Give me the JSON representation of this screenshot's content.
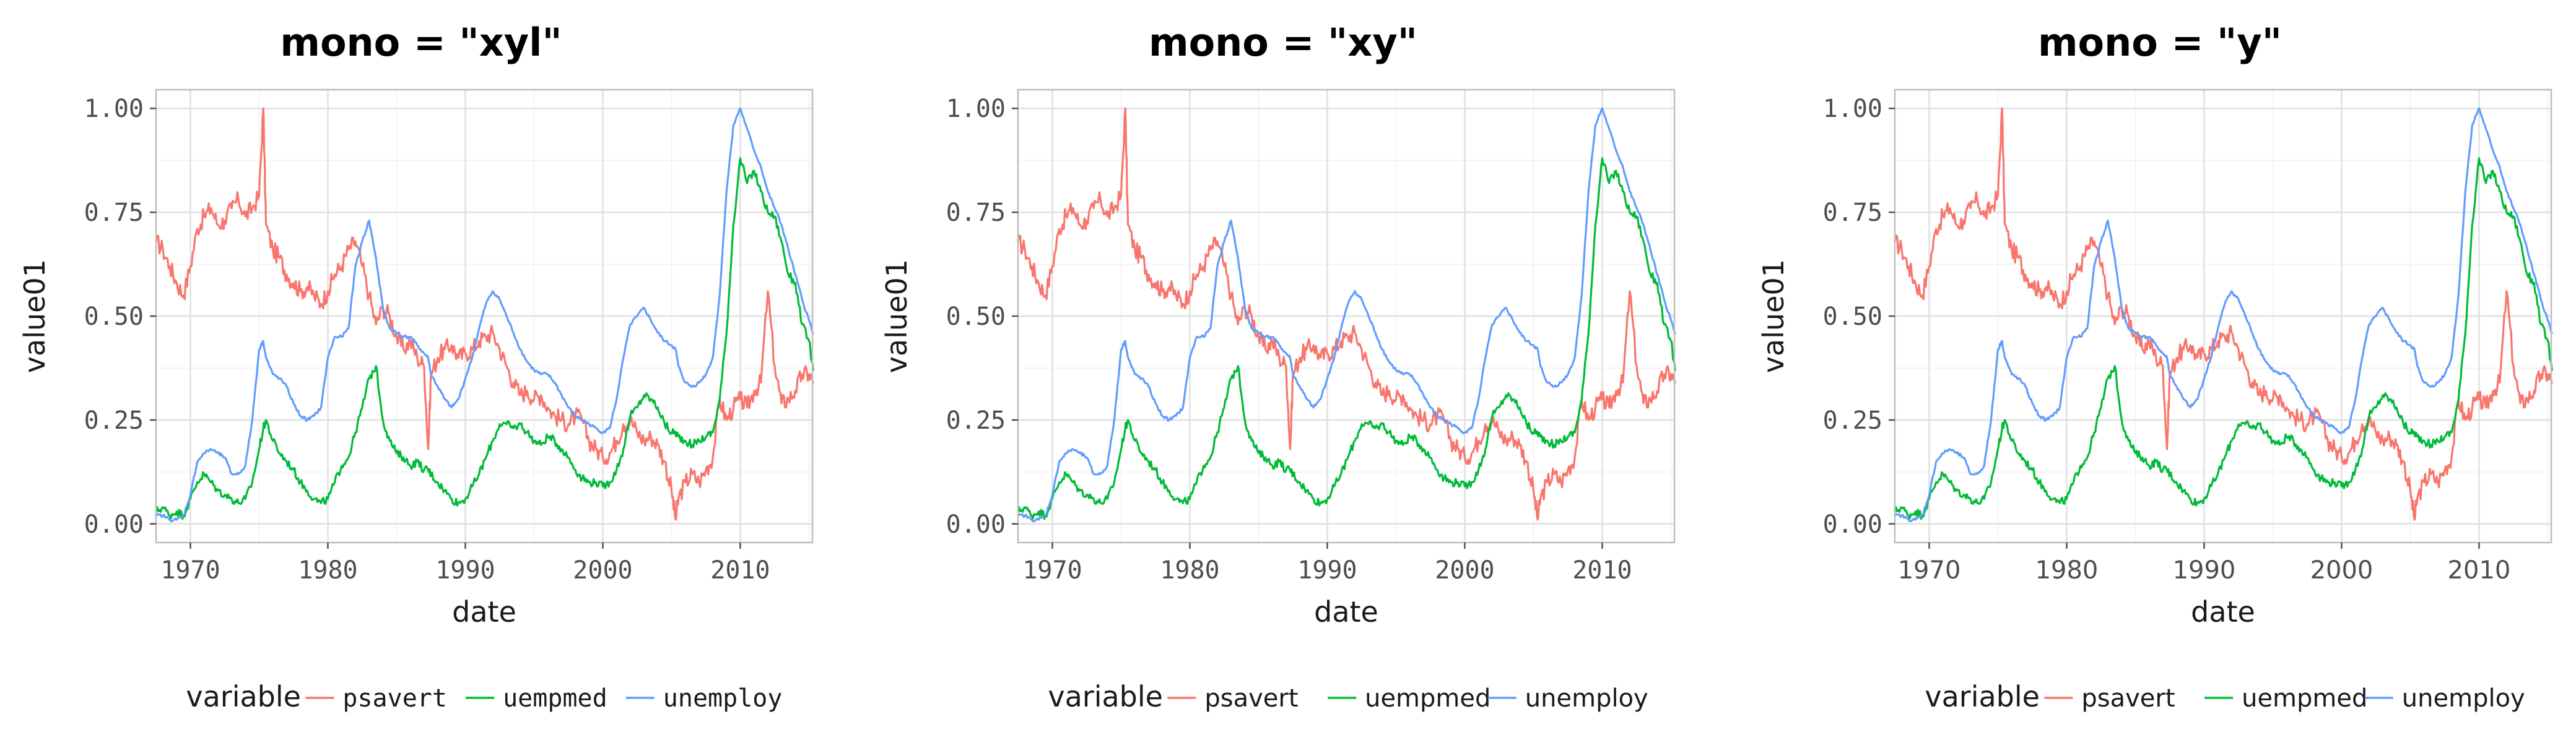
{
  "chart_data": [
    {
      "type": "line",
      "title": "mono = \"xyl\"",
      "xlabel": "date",
      "ylabel": "value01",
      "x_ticks": [
        "1970",
        "1980",
        "1990",
        "2000",
        "2010"
      ],
      "y_ticks": [
        "0.00",
        "0.25",
        "0.50",
        "0.75",
        "1.00"
      ],
      "xlim": [
        "1967-07-01",
        "2015-04-01"
      ],
      "ylim": [
        0,
        1
      ],
      "tick_font": {
        "x": "monospace",
        "y": "monospace"
      },
      "legend": {
        "title": "variable",
        "position": "bottom",
        "font": "monospace"
      },
      "grid": true,
      "series": [
        {
          "name": "psavert",
          "color": "#F8766D"
        },
        {
          "name": "uempmed",
          "color": "#00BA38"
        },
        {
          "name": "unemploy",
          "color": "#619CFF"
        }
      ]
    },
    {
      "type": "line",
      "title": "mono = \"xy\"",
      "xlabel": "date",
      "ylabel": "value01",
      "x_ticks": [
        "1970",
        "1980",
        "1990",
        "2000",
        "2010"
      ],
      "y_ticks": [
        "0.00",
        "0.25",
        "0.50",
        "0.75",
        "1.00"
      ],
      "xlim": [
        "1967-07-01",
        "2015-04-01"
      ],
      "ylim": [
        0,
        1
      ],
      "tick_font": {
        "x": "monospace",
        "y": "monospace"
      },
      "legend": {
        "title": "variable",
        "position": "bottom",
        "font": "sans-serif"
      },
      "grid": true,
      "series": [
        {
          "name": "psavert",
          "color": "#F8766D"
        },
        {
          "name": "uempmed",
          "color": "#00BA38"
        },
        {
          "name": "unemploy",
          "color": "#619CFF"
        }
      ]
    },
    {
      "type": "line",
      "title": "mono = \"y\"",
      "xlabel": "date",
      "ylabel": "value01",
      "x_ticks": [
        "1970",
        "1980",
        "1990",
        "2000",
        "2010"
      ],
      "y_ticks": [
        "0.00",
        "0.25",
        "0.50",
        "0.75",
        "1.00"
      ],
      "xlim": [
        "1967-07-01",
        "2015-04-01"
      ],
      "ylim": [
        0,
        1
      ],
      "tick_font": {
        "x": "sans-serif",
        "y": "monospace"
      },
      "legend": {
        "title": "variable",
        "position": "bottom",
        "font": "sans-serif"
      },
      "grid": true,
      "series": [
        {
          "name": "psavert",
          "color": "#F8766D"
        },
        {
          "name": "uempmed",
          "color": "#00BA38"
        },
        {
          "name": "unemploy",
          "color": "#619CFF"
        }
      ]
    }
  ],
  "series_values": {
    "x": [
      1967.5,
      1968.0,
      1968.5,
      1969.0,
      1969.5,
      1970.0,
      1970.5,
      1971.0,
      1971.5,
      1972.0,
      1972.5,
      1973.0,
      1973.5,
      1974.0,
      1974.5,
      1975.0,
      1975.3,
      1975.5,
      1976.0,
      1976.5,
      1977.0,
      1977.5,
      1978.0,
      1978.5,
      1979.0,
      1979.5,
      1980.0,
      1980.5,
      1981.0,
      1981.5,
      1982.0,
      1982.5,
      1983.0,
      1983.5,
      1984.0,
      1984.5,
      1985.0,
      1985.5,
      1986.0,
      1986.5,
      1987.0,
      1987.3,
      1987.5,
      1988.0,
      1988.5,
      1989.0,
      1989.5,
      1990.0,
      1990.5,
      1991.0,
      1991.5,
      1992.0,
      1992.5,
      1993.0,
      1993.5,
      1994.0,
      1994.5,
      1995.0,
      1995.5,
      1996.0,
      1996.5,
      1997.0,
      1997.5,
      1998.0,
      1998.5,
      1999.0,
      1999.5,
      2000.0,
      2000.5,
      2001.0,
      2001.5,
      2002.0,
      2002.5,
      2003.0,
      2003.5,
      2004.0,
      2004.5,
      2005.0,
      2005.3,
      2005.5,
      2006.0,
      2006.5,
      2007.0,
      2007.5,
      2008.0,
      2008.5,
      2009.0,
      2009.5,
      2010.0,
      2010.5,
      2011.0,
      2011.5,
      2012.0,
      2012.5,
      2013.0,
      2013.5,
      2014.0,
      2014.5,
      2015.0,
      2015.3
    ],
    "psavert": [
      0.68,
      0.66,
      0.62,
      0.58,
      0.55,
      0.62,
      0.71,
      0.74,
      0.76,
      0.72,
      0.73,
      0.76,
      0.78,
      0.74,
      0.76,
      0.79,
      1.0,
      0.72,
      0.66,
      0.64,
      0.6,
      0.58,
      0.56,
      0.57,
      0.55,
      0.53,
      0.56,
      0.6,
      0.62,
      0.66,
      0.68,
      0.62,
      0.55,
      0.48,
      0.52,
      0.5,
      0.45,
      0.42,
      0.44,
      0.4,
      0.38,
      0.18,
      0.36,
      0.4,
      0.42,
      0.43,
      0.4,
      0.41,
      0.42,
      0.44,
      0.45,
      0.46,
      0.42,
      0.38,
      0.34,
      0.31,
      0.32,
      0.3,
      0.31,
      0.28,
      0.26,
      0.25,
      0.24,
      0.26,
      0.25,
      0.2,
      0.18,
      0.16,
      0.17,
      0.2,
      0.24,
      0.25,
      0.22,
      0.2,
      0.21,
      0.19,
      0.15,
      0.08,
      0.01,
      0.06,
      0.1,
      0.12,
      0.1,
      0.13,
      0.16,
      0.3,
      0.25,
      0.28,
      0.3,
      0.28,
      0.32,
      0.34,
      0.56,
      0.38,
      0.29,
      0.3,
      0.32,
      0.36,
      0.36,
      0.34
    ],
    "uempmed": [
      0.03,
      0.04,
      0.02,
      0.03,
      0.02,
      0.06,
      0.1,
      0.12,
      0.1,
      0.08,
      0.07,
      0.06,
      0.05,
      0.06,
      0.1,
      0.18,
      0.23,
      0.25,
      0.2,
      0.17,
      0.15,
      0.13,
      0.1,
      0.08,
      0.06,
      0.05,
      0.06,
      0.1,
      0.14,
      0.16,
      0.22,
      0.28,
      0.35,
      0.38,
      0.25,
      0.2,
      0.17,
      0.16,
      0.14,
      0.15,
      0.13,
      0.13,
      0.12,
      0.1,
      0.08,
      0.06,
      0.05,
      0.06,
      0.09,
      0.12,
      0.16,
      0.2,
      0.24,
      0.24,
      0.23,
      0.24,
      0.22,
      0.2,
      0.19,
      0.21,
      0.2,
      0.18,
      0.16,
      0.13,
      0.11,
      0.1,
      0.1,
      0.09,
      0.1,
      0.13,
      0.18,
      0.26,
      0.28,
      0.31,
      0.3,
      0.28,
      0.24,
      0.22,
      0.22,
      0.21,
      0.2,
      0.19,
      0.2,
      0.21,
      0.22,
      0.3,
      0.46,
      0.72,
      0.88,
      0.82,
      0.85,
      0.8,
      0.75,
      0.74,
      0.68,
      0.6,
      0.58,
      0.48,
      0.44,
      0.37
    ],
    "unemploy": [
      0.02,
      0.02,
      0.01,
      0.01,
      0.02,
      0.07,
      0.15,
      0.17,
      0.18,
      0.17,
      0.16,
      0.12,
      0.12,
      0.14,
      0.25,
      0.42,
      0.44,
      0.4,
      0.36,
      0.35,
      0.33,
      0.29,
      0.26,
      0.25,
      0.26,
      0.28,
      0.4,
      0.45,
      0.45,
      0.47,
      0.62,
      0.68,
      0.73,
      0.64,
      0.52,
      0.47,
      0.46,
      0.45,
      0.45,
      0.43,
      0.41,
      0.4,
      0.36,
      0.33,
      0.3,
      0.28,
      0.3,
      0.35,
      0.4,
      0.47,
      0.53,
      0.56,
      0.54,
      0.5,
      0.46,
      0.42,
      0.39,
      0.37,
      0.36,
      0.36,
      0.34,
      0.31,
      0.28,
      0.26,
      0.25,
      0.24,
      0.23,
      0.22,
      0.23,
      0.3,
      0.4,
      0.48,
      0.5,
      0.52,
      0.49,
      0.46,
      0.44,
      0.43,
      0.42,
      0.38,
      0.34,
      0.33,
      0.34,
      0.36,
      0.4,
      0.55,
      0.8,
      0.96,
      1.0,
      0.95,
      0.9,
      0.86,
      0.8,
      0.76,
      0.72,
      0.66,
      0.6,
      0.54,
      0.49,
      0.46
    ]
  }
}
